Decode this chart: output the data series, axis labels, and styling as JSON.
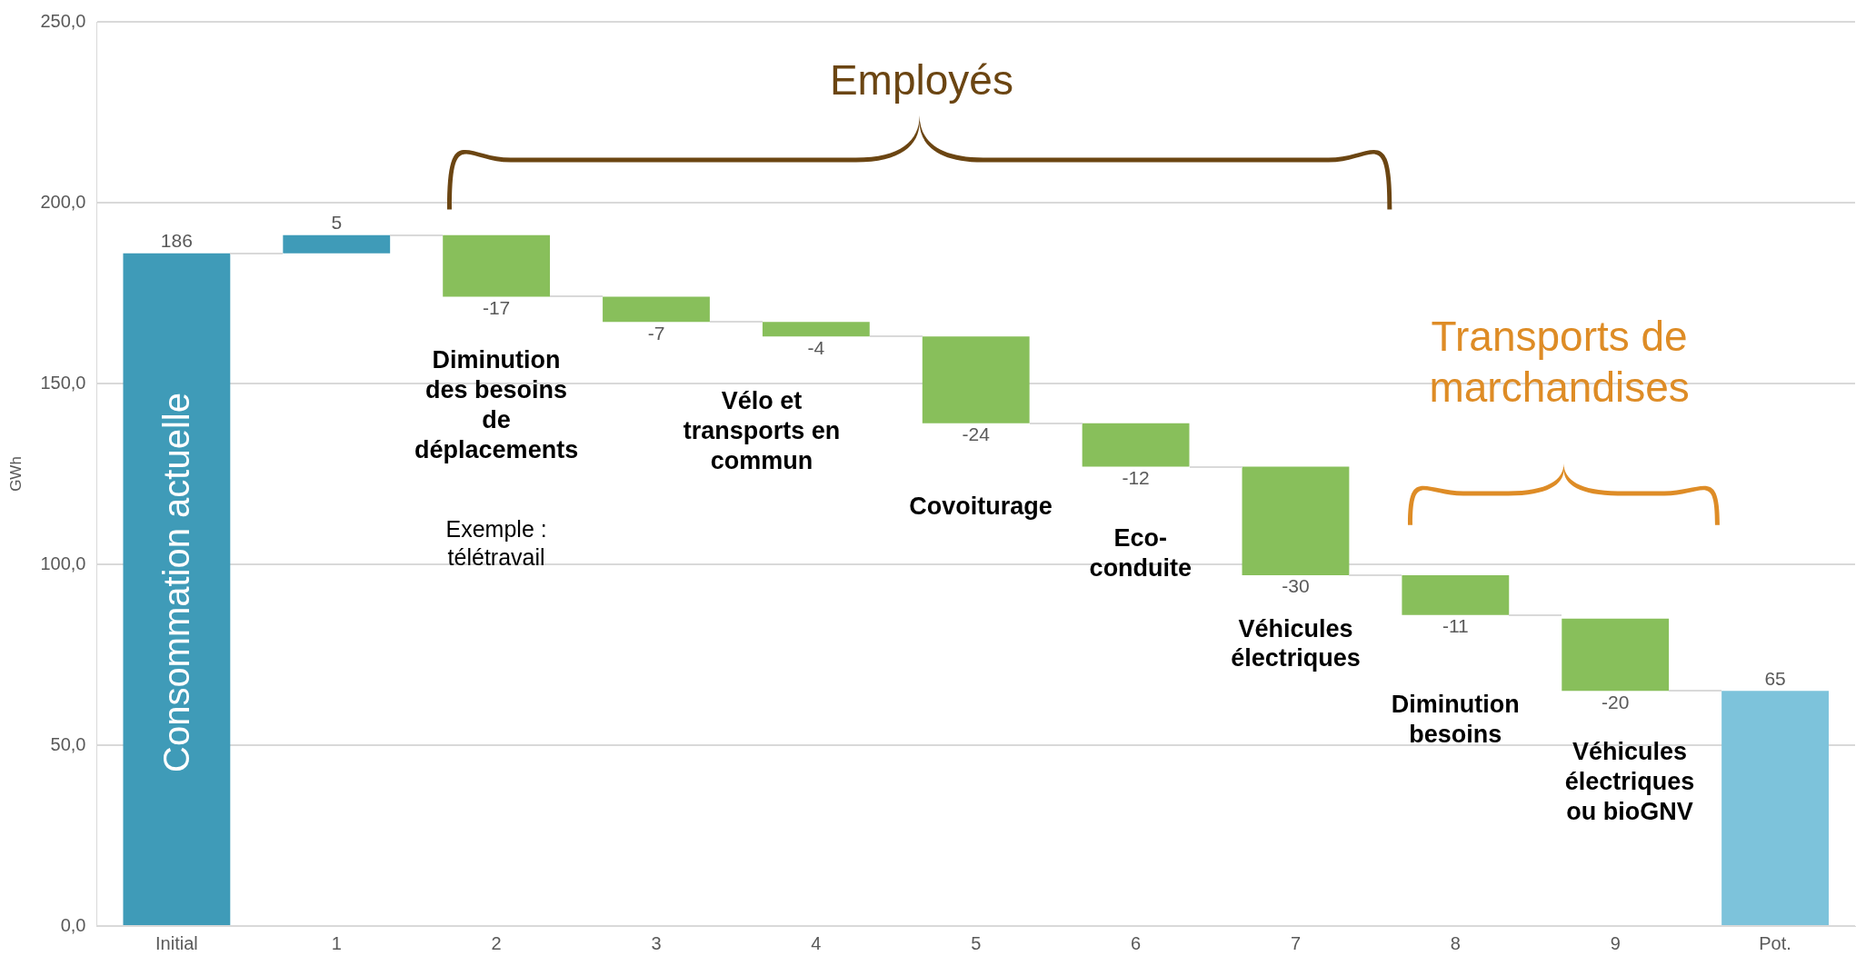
{
  "chart_data": {
    "type": "bar",
    "ylabel": "GWh",
    "categories": [
      "Initial",
      "1",
      "2",
      "3",
      "4",
      "5",
      "6",
      "7",
      "8",
      "9",
      "Pot."
    ],
    "values": [
      186,
      5,
      -17,
      -7,
      -4,
      -24,
      -12,
      -30,
      -11,
      -20,
      65
    ],
    "base": [
      0,
      186,
      191,
      174,
      167,
      163,
      139,
      127,
      97,
      85,
      0
    ],
    "colors": [
      "#3f9bb8",
      "#3f9bb8",
      "#88bf5b",
      "#88bf5b",
      "#88bf5b",
      "#88bf5b",
      "#88bf5b",
      "#88bf5b",
      "#88bf5b",
      "#88bf5b",
      "#7dc3db"
    ],
    "ylim": [
      0,
      250
    ],
    "yticks": [
      {
        "value": 0,
        "label": "0,0"
      },
      {
        "value": 50,
        "label": "50,0"
      },
      {
        "value": 100,
        "label": "100,0"
      },
      {
        "value": 150,
        "label": "150,0"
      },
      {
        "value": 200,
        "label": "200,0"
      },
      {
        "value": 250,
        "label": "250,0"
      }
    ],
    "grid": "y",
    "data_labels": true,
    "annotations": [
      "Consommation actuelle",
      "Diminution\ndes besoins\nde\ndéplacements",
      "Exemple :\ntélétravail",
      "Vélo et\ntransports en\ncommun",
      "Covoiturage",
      "Eco-\nconduite",
      "Véhicules\nélectriques",
      "Diminution\nbesoins",
      "Véhicules\nélectriques\nou bioGNV",
      "Employés",
      "Transports de\nmarchandises"
    ]
  }
}
